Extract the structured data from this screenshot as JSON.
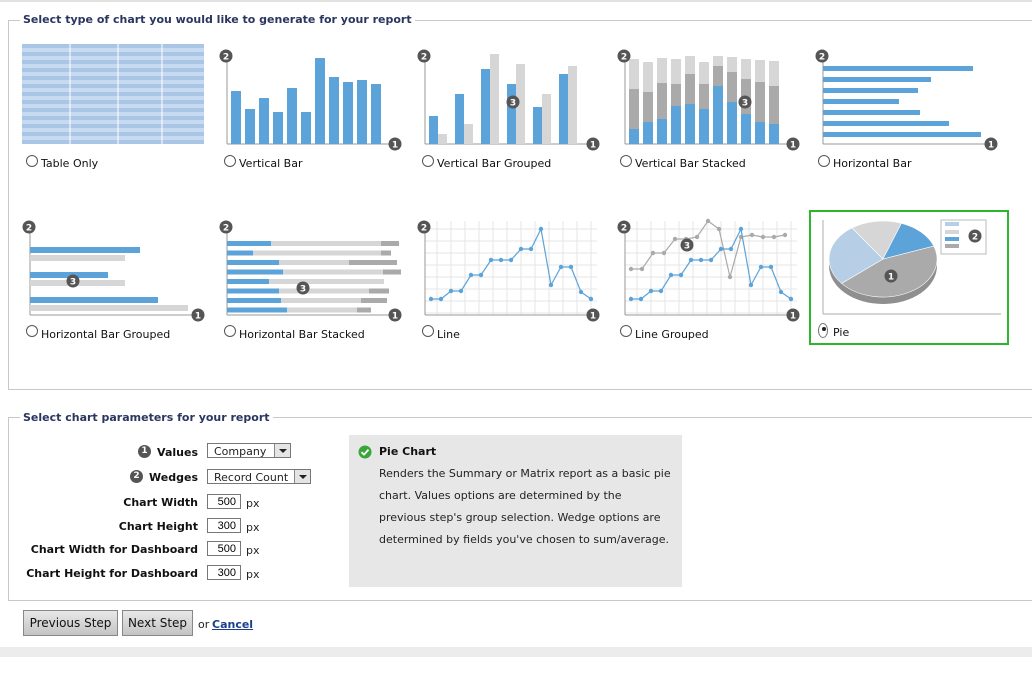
{
  "chart_section": {
    "legend": "Select type of chart you would like to generate for your report",
    "options": [
      {
        "label": "Table Only",
        "selected": false
      },
      {
        "label": "Vertical Bar",
        "selected": false
      },
      {
        "label": "Vertical Bar Grouped",
        "selected": false
      },
      {
        "label": "Vertical Bar Stacked",
        "selected": false
      },
      {
        "label": "Horizontal Bar",
        "selected": false
      },
      {
        "label": "Horizontal Bar Grouped",
        "selected": false
      },
      {
        "label": "Horizontal Bar Stacked",
        "selected": false
      },
      {
        "label": "Line",
        "selected": false
      },
      {
        "label": "Line Grouped",
        "selected": false
      },
      {
        "label": "Pie",
        "selected": true
      }
    ]
  },
  "params_section": {
    "legend": "Select chart parameters for your report",
    "values_label": "Values",
    "values_bullet": "1",
    "values_select": "Company",
    "wedges_label": "Wedges",
    "wedges_bullet": "2",
    "wedges_select": "Record Count",
    "chart_width_label": "Chart Width",
    "chart_width": "500",
    "chart_height_label": "Chart Height",
    "chart_height": "300",
    "dash_width_label": "Chart Width for Dashboard",
    "dash_width": "500",
    "dash_height_label": "Chart Height for Dashboard",
    "dash_height": "300",
    "unit": "px"
  },
  "info": {
    "title": "Pie Chart",
    "description": "Renders the Summary or Matrix report as a basic pie chart. Values options are determined by the previous step's group selection. Wedge options are determined by fields you've chosen to sum/average."
  },
  "footer": {
    "previous_label": "Previous Step",
    "next_label": "Next Step",
    "or_text": "or",
    "cancel_label": "Cancel"
  },
  "thumb_markers": {
    "one": "1",
    "two": "2",
    "three": "3"
  },
  "colors": {
    "accent_blue": "#5ba3d9",
    "gray": "#aaaaaa",
    "light_gray": "#d6d6d6",
    "selected_border": "#2db52d",
    "legend_text": "#2a3560"
  },
  "icons": [
    "radio-icon",
    "check-circle-icon",
    "dropdown-arrow-icon",
    "number-bullet-icon"
  ]
}
